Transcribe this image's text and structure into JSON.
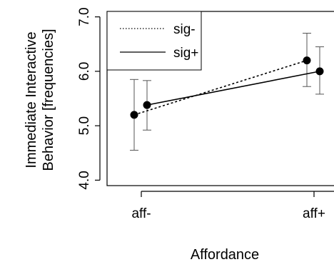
{
  "chart_data": {
    "type": "line",
    "xlabel": "Affordance",
    "ylabel": [
      "Immediate Interactive",
      "Behavior [frequencies]"
    ],
    "categories": [
      "aff-",
      "aff+"
    ],
    "ylim": [
      3.9,
      7.1
    ],
    "yticks": [
      "4.0",
      "5.0",
      "6.0",
      "7.0"
    ],
    "series": [
      {
        "name": "sig-",
        "line_style": "dotted",
        "x": [
          "aff-",
          "aff+"
        ],
        "values": [
          5.2,
          6.2
        ],
        "ci_low": [
          4.55,
          5.72
        ],
        "ci_high": [
          5.85,
          6.7
        ]
      },
      {
        "name": "sig+",
        "line_style": "solid",
        "x": [
          "aff-",
          "aff+"
        ],
        "values": [
          5.38,
          6.0
        ],
        "ci_low": [
          4.92,
          5.58
        ],
        "ci_high": [
          5.83,
          6.45
        ]
      }
    ],
    "legend": {
      "position": "top-left",
      "entries": [
        "sig-",
        "sig+"
      ]
    },
    "grid": false,
    "colors": {
      "line": "#000000",
      "marker": "#000000",
      "errorbar": "#555555"
    }
  }
}
